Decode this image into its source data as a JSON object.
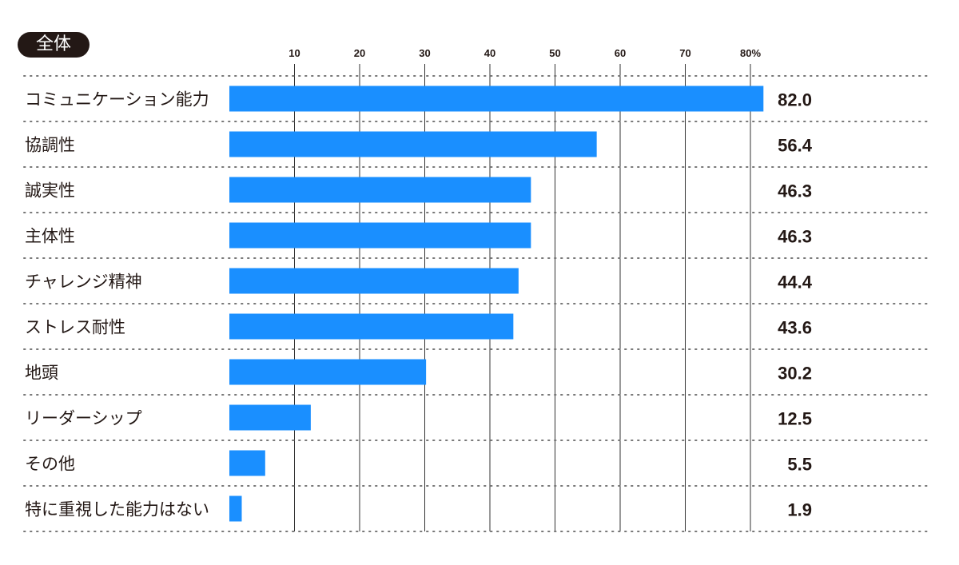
{
  "badge": "全体",
  "chart_data": {
    "type": "bar",
    "orientation": "horizontal",
    "title": "全体",
    "unit": "%",
    "xlim": [
      0,
      80
    ],
    "ticks": [
      10,
      20,
      30,
      40,
      50,
      60,
      70,
      80
    ],
    "tick_labels": [
      "10",
      "20",
      "30",
      "40",
      "50",
      "60",
      "70",
      "80%"
    ],
    "categories": [
      "コミュニケーション能力",
      "協調性",
      "誠実性",
      "主体性",
      "チャレンジ精神",
      "ストレス耐性",
      "地頭",
      "リーダーシップ",
      "その他",
      "特に重視した能力はない"
    ],
    "values": [
      82.0,
      56.4,
      46.3,
      46.3,
      44.4,
      43.6,
      30.2,
      12.5,
      5.5,
      1.9
    ],
    "value_labels": [
      "82.0",
      "56.4",
      "46.3",
      "46.3",
      "44.4",
      "43.6",
      "30.2",
      "12.5",
      "5.5",
      "1.9"
    ],
    "bar_color": "#1a8fff",
    "grid": true
  }
}
